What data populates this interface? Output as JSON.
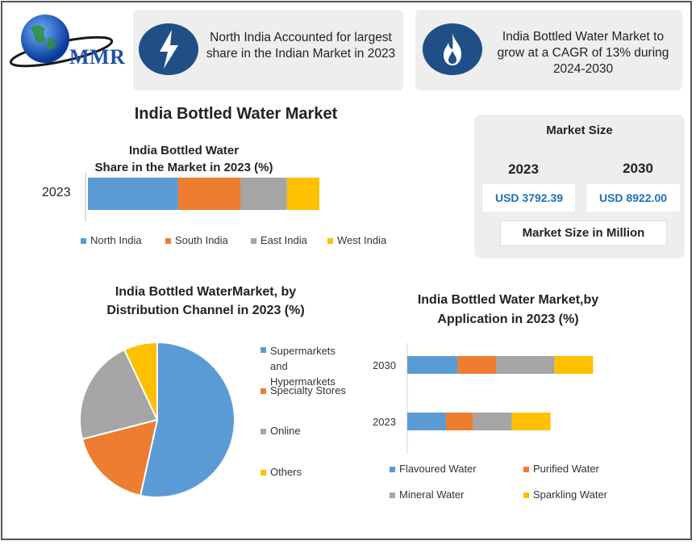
{
  "logo": {
    "text": "MMR"
  },
  "highlights": [
    {
      "icon": "lightning-icon",
      "text_line1": "North India Accounted for largest",
      "text_line2": "share in the Indian Market in 2023"
    },
    {
      "icon": "flame-icon",
      "text_line1": "India Bottled Water Market to",
      "text_line2": "grow at a CAGR of 13% during",
      "text_line3": "2024-2030"
    }
  ],
  "main_title": "India Bottled Water Market",
  "market_size": {
    "heading": "Market Size",
    "years": [
      "2023",
      "2030"
    ],
    "values": [
      "USD 3792.39",
      "USD 8922.00"
    ],
    "footer": "Market Size in Million"
  },
  "colors": {
    "blue": "#5b9bd5",
    "orange": "#ed7d31",
    "gray": "#a5a5a5",
    "yellow": "#ffc000",
    "dark_blue": "#1f4f86",
    "value_blue": "#1f6fb5"
  },
  "chart_data": [
    {
      "type": "bar",
      "orientation": "horizontal",
      "stacked": true,
      "title_line1": "India Bottled Water",
      "title_line2": "Share in the Market in 2023 (%)",
      "categories": [
        "2023"
      ],
      "series": [
        {
          "name": "North India",
          "values": [
            39
          ],
          "color": "#5b9bd5"
        },
        {
          "name": "South India",
          "values": [
            27
          ],
          "color": "#ed7d31"
        },
        {
          "name": "East India",
          "values": [
            20
          ],
          "color": "#a5a5a5"
        },
        {
          "name": "West India",
          "values": [
            14
          ],
          "color": "#ffc000"
        }
      ],
      "legend": "bottom"
    },
    {
      "type": "pie",
      "title_line1": "India Bottled WaterMarket, by",
      "title_line2": "Distribution Channel in 2023 (%)",
      "slices": [
        {
          "name": "Supermarkets and Hypermarkets",
          "label_lines": [
            "Supermarkets",
            "and",
            "Hypermarkets"
          ],
          "value": 53.5,
          "color": "#5b9bd5"
        },
        {
          "name": "Specialty Stores",
          "label_lines": [
            "Specialty Stores"
          ],
          "value": 17.5,
          "color": "#ed7d31"
        },
        {
          "name": "Online",
          "label_lines": [
            "Online"
          ],
          "value": 22,
          "color": "#a5a5a5"
        },
        {
          "name": "Others",
          "label_lines": [
            "Others"
          ],
          "value": 7,
          "color": "#ffc000"
        }
      ],
      "legend": "right"
    },
    {
      "type": "bar",
      "orientation": "horizontal",
      "stacked": true,
      "title_line1": "India Bottled Water Market,by",
      "title_line2": "Application in 2023 (%)",
      "categories": [
        "2030",
        "2023"
      ],
      "series": [
        {
          "name": "Flavoured Water",
          "values": [
            26,
            20
          ],
          "color": "#5b9bd5"
        },
        {
          "name": "Purified Water",
          "values": [
            20,
            14
          ],
          "color": "#ed7d31"
        },
        {
          "name": "Mineral Water",
          "values": [
            30,
            20
          ],
          "color": "#a5a5a5"
        },
        {
          "name": "Sparkling Water",
          "values": [
            20,
            20
          ],
          "color": "#ffc000"
        }
      ],
      "legend": "bottom"
    }
  ]
}
